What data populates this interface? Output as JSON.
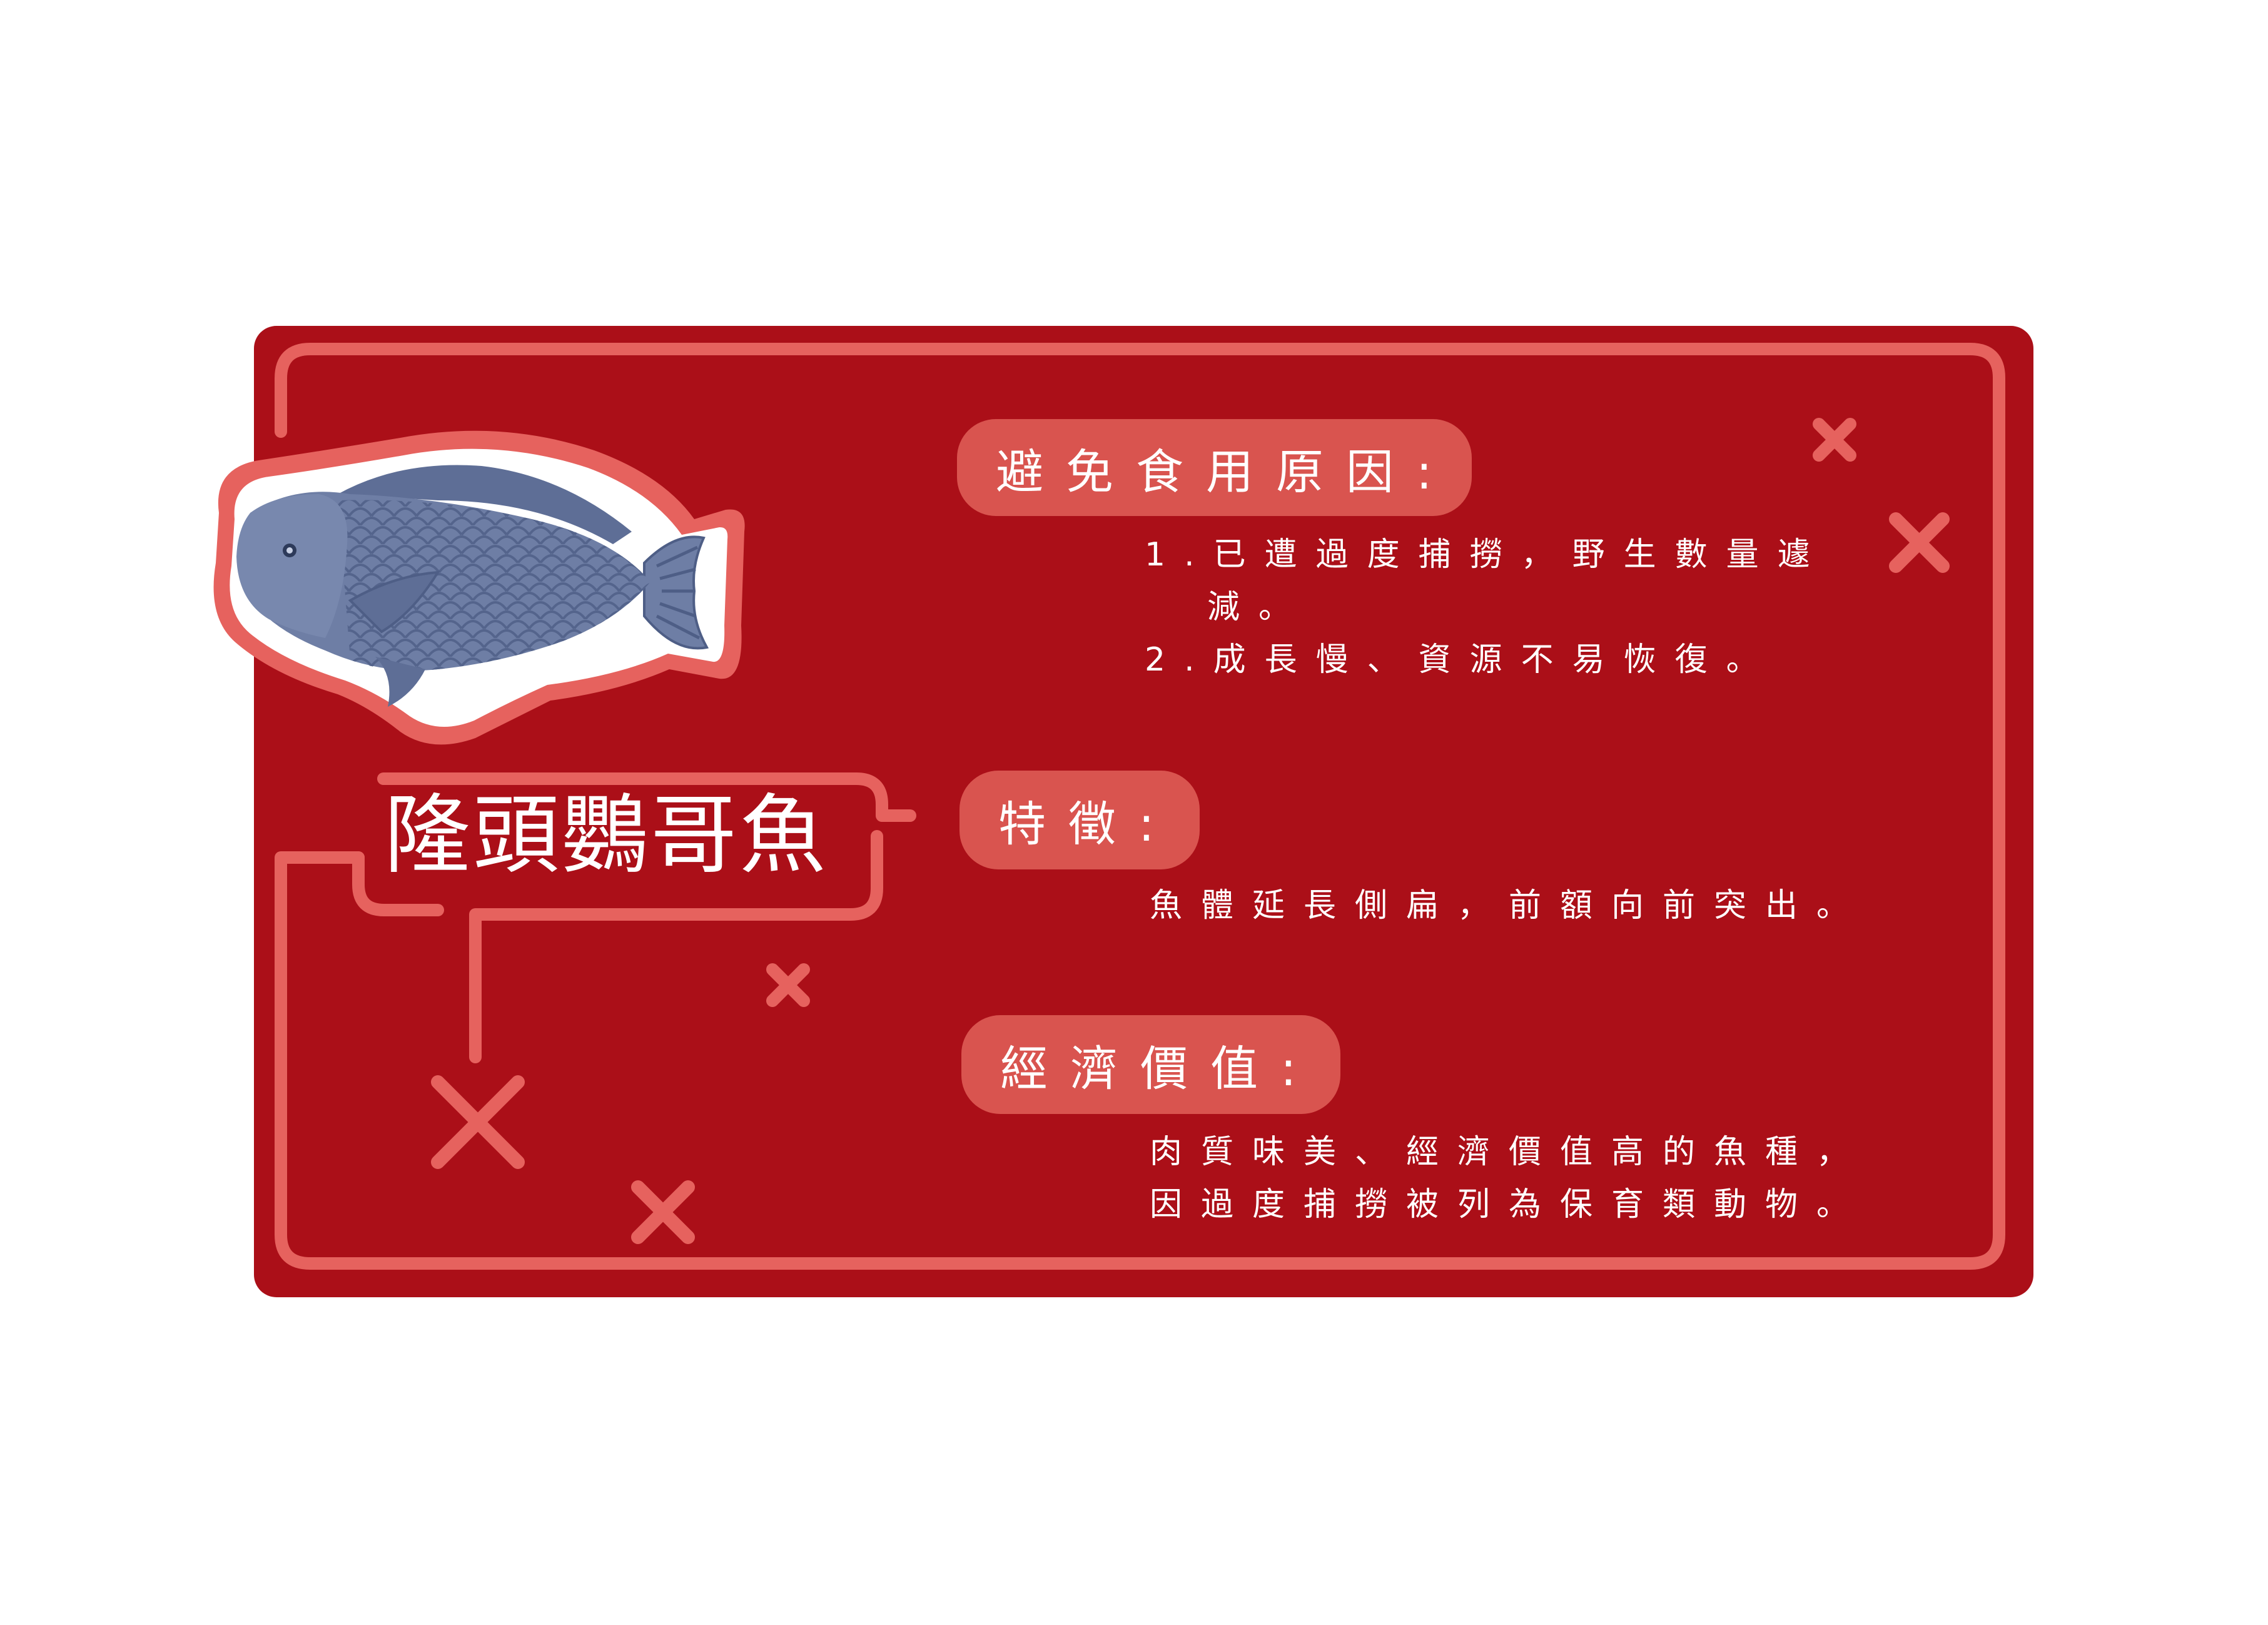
{
  "colors": {
    "card": "#ab0f18",
    "accent": "#e6625e",
    "pill": "#d9544f",
    "text": "#ffffff",
    "fish": "#6e7ea5"
  },
  "fish": {
    "name": "隆頭鸚哥魚",
    "illustration": "humphead-parrotfish"
  },
  "sections": [
    {
      "heading": "避免食用原因:",
      "lines": [
        "1.已遭過度捕撈，野生數量遽",
        "減。",
        "2.成長慢、資源不易恢復。"
      ]
    },
    {
      "heading": "特徵:",
      "lines": [
        "魚體延長側扁，前額向前突出。"
      ]
    },
    {
      "heading": "經濟價值:",
      "lines": [
        "肉質味美、經濟價值高的魚種，",
        "因過度捕撈被列為保育類動物。"
      ]
    }
  ]
}
